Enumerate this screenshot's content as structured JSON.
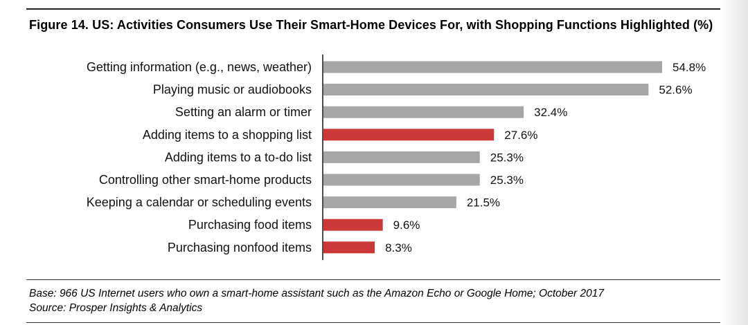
{
  "title": "Figure 14. US: Activities Consumers Use Their Smart-Home Devices For, with Shopping Functions Highlighted (%)",
  "colors": {
    "default": "#a6a6a6",
    "highlight": "#cc3838",
    "axis": "#111111"
  },
  "chart_data": {
    "type": "bar",
    "orientation": "horizontal",
    "title": "Figure 14. US: Activities Consumers Use Their Smart-Home Devices For, with Shopping Functions Highlighted (%)",
    "categories": [
      "Getting information (e.g., news, weather)",
      "Playing music or audiobooks",
      "Setting an alarm or timer",
      "Adding items to a shopping list",
      "Adding items to a to-do list",
      "Controlling other smart-home products",
      "Keeping a calendar or scheduling events",
      "Purchasing food items",
      "Purchasing nonfood items"
    ],
    "values": [
      54.8,
      52.6,
      32.4,
      27.6,
      25.3,
      25.3,
      21.5,
      9.6,
      8.3
    ],
    "value_labels": [
      "54.8%",
      "52.6%",
      "32.4%",
      "27.6%",
      "25.3%",
      "25.3%",
      "21.5%",
      "9.6%",
      "8.3%"
    ],
    "highlighted": [
      false,
      false,
      false,
      true,
      false,
      false,
      false,
      true,
      true
    ],
    "xlim": [
      0,
      60
    ],
    "grid": false,
    "legend": "none"
  },
  "footnote": {
    "base": "Base: 966 US Internet users who own a smart-home assistant such as the Amazon Echo or Google Home; October 2017",
    "source": "Source: Prosper Insights & Analytics"
  }
}
